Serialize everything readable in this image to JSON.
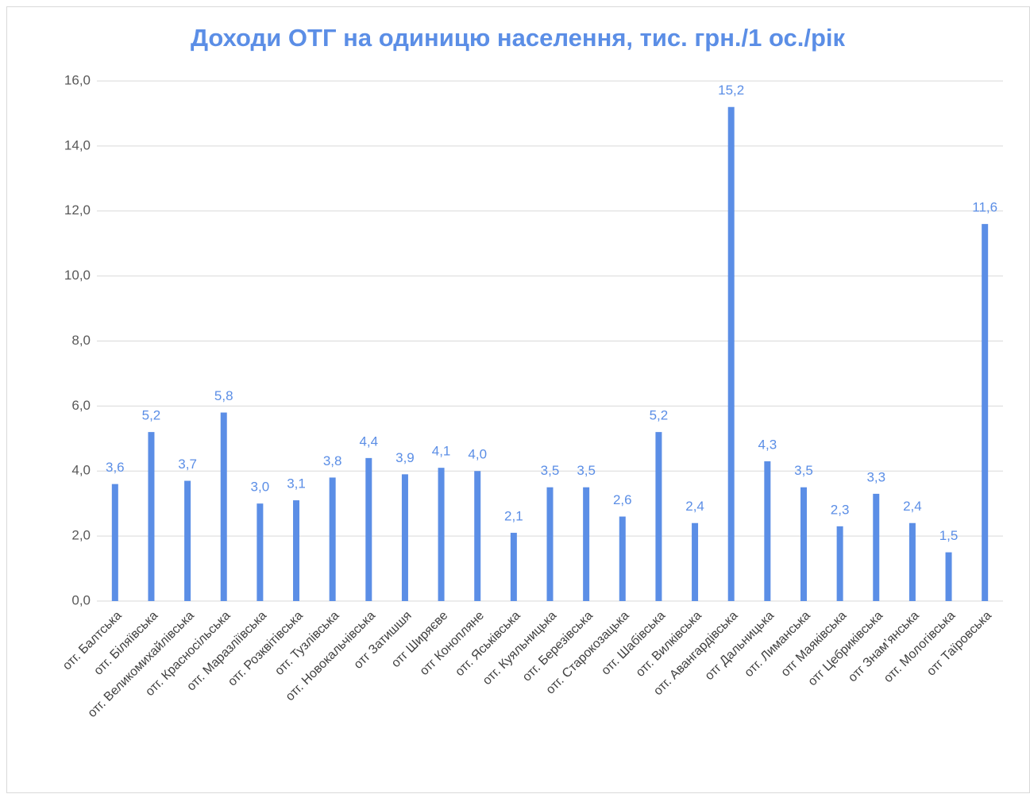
{
  "chart_data": {
    "type": "bar",
    "title": "Доходи ОТГ на одиницю населення, тис. грн./1 ос./рік",
    "categories": [
      "отг. Балтська",
      "отг. Біляївська",
      "отг. Великомихайлівська",
      "отг. Красносільська",
      "отг. Маразліївська",
      "отг. Розквітівська",
      "отг. Тузлівська",
      "отг. Новокальчівська",
      "отг Затишшя",
      "отг Ширяєве",
      "отг Конопляне",
      "отг. Яськівська",
      "отг. Куяльницька",
      "отг. Березівська",
      "отг. Старокозацька",
      "отг. Шабівська",
      "отг. Вилківська",
      "отг. Авангардівська",
      "отг Дальницька",
      "отг. Лиманська",
      "отг Маяківська",
      "отг Цебриківська",
      "отг Знам’янська",
      "отг. Мологівська",
      "отг Таїровська"
    ],
    "values": [
      3.6,
      5.2,
      3.7,
      5.8,
      3.0,
      3.1,
      3.8,
      4.4,
      3.9,
      4.1,
      4.0,
      2.1,
      3.5,
      3.5,
      2.6,
      5.2,
      2.4,
      15.2,
      4.3,
      3.5,
      2.3,
      3.3,
      2.4,
      1.5,
      11.6
    ],
    "value_labels": [
      "3,6",
      "5,2",
      "3,7",
      "5,8",
      "3,0",
      "3,1",
      "3,8",
      "4,4",
      "3,9",
      "4,1",
      "4,0",
      "2,1",
      "3,5",
      "3,5",
      "2,6",
      "5,2",
      "2,4",
      "15,2",
      "4,3",
      "3,5",
      "2,3",
      "3,3",
      "2,4",
      "1,5",
      "11,6"
    ],
    "color": "#5b8ee6",
    "ylim": [
      0,
      16
    ],
    "yticks": [
      {
        "value": 0,
        "label": "0,0"
      },
      {
        "value": 2,
        "label": "2,0"
      },
      {
        "value": 4,
        "label": "4,0"
      },
      {
        "value": 6,
        "label": "6,0"
      },
      {
        "value": 8,
        "label": "8,0"
      },
      {
        "value": 10,
        "label": "10,0"
      },
      {
        "value": 12,
        "label": "12,0"
      },
      {
        "value": 14,
        "label": "14,0"
      },
      {
        "value": 16,
        "label": "16,0"
      }
    ],
    "grid": true
  }
}
